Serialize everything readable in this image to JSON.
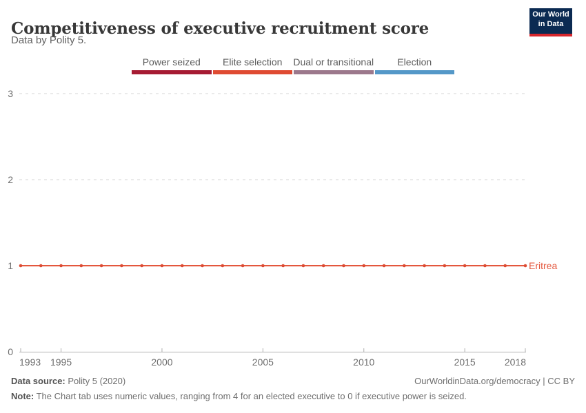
{
  "header": {
    "title": "Competitiveness of executive recruitment score",
    "subtitle": "Data by Polity 5.",
    "logo": {
      "line1": "Our World",
      "line2": "in Data",
      "bg_color": "#0b2a52",
      "accent_color": "#d7262c"
    }
  },
  "legend": {
    "items": [
      {
        "label": "Power seized",
        "color": "#A61B33"
      },
      {
        "label": "Elite selection",
        "color": "#DF4B32"
      },
      {
        "label": "Dual or transitional",
        "color": "#9C788C"
      },
      {
        "label": "Election",
        "color": "#5498C8"
      }
    ]
  },
  "chart_data": {
    "type": "line",
    "title": "Competitiveness of executive recruitment score",
    "xlabel": "",
    "ylabel": "",
    "xlim": [
      1993,
      2018
    ],
    "ylim": [
      0,
      3
    ],
    "x_ticks": [
      1993,
      1995,
      2000,
      2005,
      2010,
      2015,
      2018
    ],
    "y_ticks": [
      0,
      1,
      2,
      3
    ],
    "grid": "horizontal-dashed",
    "legend_position": "end-of-line-label",
    "series": [
      {
        "name": "Eritrea",
        "color": "#E4573D",
        "x": [
          1993,
          1994,
          1995,
          1996,
          1997,
          1998,
          1999,
          2000,
          2001,
          2002,
          2003,
          2004,
          2005,
          2006,
          2007,
          2008,
          2009,
          2010,
          2011,
          2012,
          2013,
          2014,
          2015,
          2016,
          2017,
          2018
        ],
        "values": [
          1,
          1,
          1,
          1,
          1,
          1,
          1,
          1,
          1,
          1,
          1,
          1,
          1,
          1,
          1,
          1,
          1,
          1,
          1,
          1,
          1,
          1,
          1,
          1,
          1,
          1
        ]
      }
    ]
  },
  "footer": {
    "source_label": "Data source:",
    "source_value": " Polity 5 (2020)",
    "credit": "OurWorldinData.org/democracy | CC BY",
    "note_label": "Note:",
    "note_value": " The Chart tab uses numeric values, ranging from 4 for an elected executive to 0 if executive power is seized."
  }
}
